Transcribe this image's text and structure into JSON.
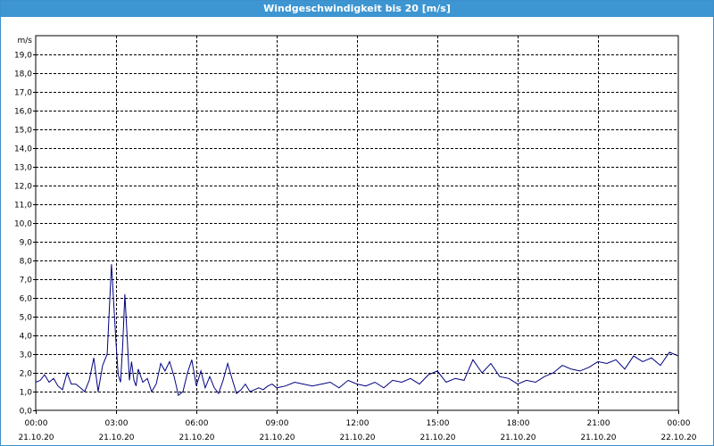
{
  "window": {
    "title": "Windgeschwindigkeit bis 20 [m/s]"
  },
  "chart_data": {
    "type": "line",
    "title": "Windgeschwindigkeit bis 20 [m/s]",
    "ylabel": "m/s",
    "xlabel": "",
    "ylim": [
      0,
      20
    ],
    "xlim_hours": [
      0,
      24
    ],
    "grid": true,
    "y_ticks": [
      "0,0",
      "1,0",
      "2,0",
      "3,0",
      "4,0",
      "5,0",
      "6,0",
      "7,0",
      "8,0",
      "9,0",
      "10,0",
      "11,0",
      "12,0",
      "13,0",
      "14,0",
      "15,0",
      "16,0",
      "17,0",
      "18,0",
      "19,0"
    ],
    "x_ticks": [
      {
        "time": "00:00",
        "date": "21.10.20"
      },
      {
        "time": "03:00",
        "date": "21.10.20"
      },
      {
        "time": "06:00",
        "date": "21.10.20"
      },
      {
        "time": "09:00",
        "date": "21.10.20"
      },
      {
        "time": "12:00",
        "date": "21.10.20"
      },
      {
        "time": "15:00",
        "date": "21.10.20"
      },
      {
        "time": "18:00",
        "date": "21.10.20"
      },
      {
        "time": "21:00",
        "date": "21.10.20"
      },
      {
        "time": "00:00",
        "date": "22.10.20"
      }
    ],
    "series": [
      {
        "color": "#000080",
        "x_hours": [
          0,
          0.17,
          0.33,
          0.5,
          0.67,
          0.83,
          1.0,
          1.17,
          1.33,
          1.5,
          1.67,
          1.83,
          2.0,
          2.17,
          2.33,
          2.5,
          2.67,
          2.83,
          3.0,
          3.08,
          3.17,
          3.25,
          3.33,
          3.42,
          3.5,
          3.58,
          3.67,
          3.75,
          3.83,
          4.0,
          4.17,
          4.33,
          4.5,
          4.67,
          4.83,
          5.0,
          5.17,
          5.33,
          5.5,
          5.67,
          5.83,
          6.0,
          6.17,
          6.33,
          6.5,
          6.67,
          6.83,
          7.0,
          7.17,
          7.33,
          7.5,
          7.67,
          7.83,
          8.0,
          8.17,
          8.33,
          8.5,
          8.67,
          8.83,
          9.0,
          9.33,
          9.67,
          10.0,
          10.33,
          10.67,
          11.0,
          11.33,
          11.67,
          12.0,
          12.33,
          12.67,
          13.0,
          13.33,
          13.67,
          14.0,
          14.33,
          14.67,
          15.0,
          15.33,
          15.67,
          16.0,
          16.33,
          16.67,
          17.0,
          17.33,
          17.67,
          18.0,
          18.33,
          18.67,
          19.0,
          19.33,
          19.67,
          20.0,
          20.33,
          20.67,
          21.0,
          21.33,
          21.67,
          22.0,
          22.33,
          22.67,
          23.0,
          23.33,
          23.67,
          24.0
        ],
        "values": [
          1.5,
          1.6,
          1.9,
          1.5,
          1.7,
          1.3,
          1.1,
          2.0,
          1.4,
          1.4,
          1.2,
          1.0,
          1.6,
          2.8,
          1.0,
          2.4,
          3.0,
          7.8,
          3.6,
          1.9,
          1.5,
          3.5,
          6.2,
          3.8,
          1.6,
          2.6,
          1.6,
          1.3,
          2.2,
          1.5,
          1.7,
          1.0,
          1.4,
          2.5,
          2.1,
          2.6,
          1.8,
          0.8,
          1.0,
          2.0,
          2.7,
          1.3,
          2.1,
          1.2,
          1.8,
          1.2,
          0.9,
          1.6,
          2.5,
          1.7,
          0.9,
          1.1,
          1.4,
          1.0,
          1.1,
          1.2,
          1.1,
          1.3,
          1.4,
          1.2,
          1.3,
          1.5,
          1.4,
          1.3,
          1.4,
          1.5,
          1.2,
          1.6,
          1.4,
          1.3,
          1.5,
          1.2,
          1.6,
          1.5,
          1.7,
          1.4,
          1.9,
          2.1,
          1.5,
          1.7,
          1.6,
          2.7,
          2.0,
          2.5,
          1.8,
          1.7,
          1.4,
          1.6,
          1.5,
          1.8,
          2.0,
          2.4,
          2.2,
          2.1,
          2.3,
          2.6,
          2.5,
          2.7,
          2.2,
          2.9,
          2.6,
          2.8,
          2.4,
          3.1,
          2.9
        ]
      }
    ]
  }
}
